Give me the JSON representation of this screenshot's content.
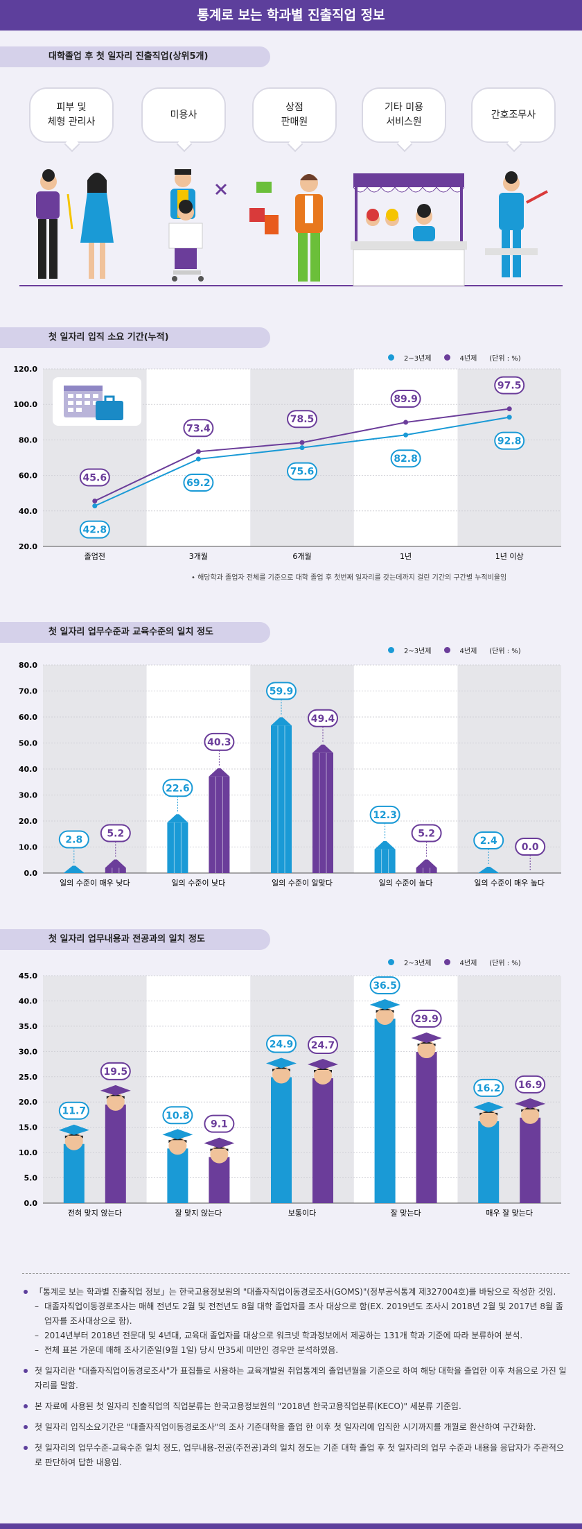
{
  "header": {
    "title": "통계로 보는 학과별 진출직업 정보"
  },
  "section1": {
    "label": "대학졸업 후 첫 일자리 진출직업(상위5개)",
    "jobs": [
      "피부 및\n체형 관리사",
      "미용사",
      "상점\n판매원",
      "기타 미용\n서비스원",
      "간호조무사"
    ]
  },
  "colors": {
    "series_a": "#1a9ad6",
    "series_b": "#6b3d9a",
    "title": "#5d3f9c"
  },
  "legend": {
    "a": "2~3년제",
    "b": "4년제",
    "unit": "(단위 : %)"
  },
  "section2": {
    "label": "첫 일자리 입직 소요 기간(누적)",
    "note": "• 해당학과 졸업자 전체를 기준으로 대학 졸업 후 첫번째 일자리를 갖는데까지 걸린 기간의 구간별 누적비율임",
    "icon": "calendar-briefcase-icon"
  },
  "section3": {
    "label": "첫 일자리 업무수준과 교육수준의 일치 정도"
  },
  "section4": {
    "label": "첫 일자리 업무내용과 전공과의 일치 정도"
  },
  "chart_data": [
    {
      "type": "line",
      "title": "첫 일자리 입직 소요 기간(누적)",
      "categories": [
        "졸업전",
        "3개월",
        "6개월",
        "1년",
        "1년 이상"
      ],
      "series": [
        {
          "name": "2~3년제",
          "values": [
            42.8,
            69.2,
            75.6,
            82.8,
            92.8
          ]
        },
        {
          "name": "4년제",
          "values": [
            45.6,
            73.4,
            78.5,
            89.9,
            97.5
          ]
        }
      ],
      "ylim": [
        20,
        120
      ],
      "yticks": [
        "20.0",
        "40.0",
        "60.0",
        "80.0",
        "100.0",
        "120.0"
      ],
      "unit": "(단위 : %)"
    },
    {
      "type": "bar",
      "title": "첫 일자리 업무수준과 교육수준의 일치 정도",
      "categories": [
        "일의 수준이 매우 낮다",
        "일의 수준이 낮다",
        "일의 수준이 알맞다",
        "일의 수준이 높다",
        "일의 수준이 매우 높다"
      ],
      "series": [
        {
          "name": "2~3년제",
          "values": [
            2.8,
            22.6,
            59.9,
            12.3,
            2.4
          ]
        },
        {
          "name": "4년제",
          "values": [
            5.2,
            40.3,
            49.4,
            5.2,
            0.0
          ]
        }
      ],
      "ylim": [
        0,
        80
      ],
      "yticks": [
        "0.0",
        "10.0",
        "20.0",
        "30.0",
        "40.0",
        "50.0",
        "60.0",
        "70.0",
        "80.0"
      ],
      "unit": "(단위 : %)"
    },
    {
      "type": "bar",
      "title": "첫 일자리 업무내용과 전공과의 일치 정도",
      "categories": [
        "전혀 맞지 않는다",
        "잘 맞지 않는다",
        "보통이다",
        "잘 맞는다",
        "매우 잘 맞는다"
      ],
      "series": [
        {
          "name": "2~3년제",
          "values": [
            11.7,
            10.8,
            24.9,
            36.5,
            16.2
          ]
        },
        {
          "name": "4년제",
          "values": [
            19.5,
            9.1,
            24.7,
            29.9,
            16.9
          ]
        }
      ],
      "ylim": [
        0,
        45
      ],
      "yticks": [
        "0.0",
        "5.0",
        "10.0",
        "15.0",
        "20.0",
        "25.0",
        "30.0",
        "35.0",
        "40.0",
        "45.0"
      ],
      "unit": "(단위 : %)"
    }
  ],
  "notes": [
    "「통계로 보는 학과별 진출직업 정보」는 한국고용정보원의 \"대졸자직업이동경로조사(GOMS)\"(정부공식통계 제327004호)를 바탕으로 작성한 것임.",
    "대졸자직업이동경로조사는 매해 전년도 2월 및 전전년도 8월 대학 졸업자를 조사 대상으로 함(EX. 2019년도 조사시 2018년 2월 및 2017년 8월 졸업자를 조사대상으로 함).",
    "2014년부터 2018년 전문대 및 4년대, 교육대 졸업자를 대상으로 워크넷 학과정보에서 제공하는 131개 학과 기준에 따라 분류하여 분석.",
    "전체 표본 가운데 매해 조사기준일(9월 1일) 당시 만35세 미만인 경우만 분석하였음.",
    "첫 일자리란 \"대졸자직업이동경로조사\"가 표집틀로 사용하는 교육개발원 취업통계의 졸업년월을 기준으로 하여 해당 대학을 졸업한 이후 처음으로 가진 일자리를 말함.",
    "본 자료에 사용된 첫 일자리 진출직업의 직업분류는 한국고용정보원의 \"2018년 한국고용직업분류(KECO)\" 세분류 기준임.",
    "첫 일자리 입직소요기간은 \"대졸자직업이동경로조사\"의 조사 기준대학을 졸업 한 이후 첫 일자리에 입직한 시기까지를 개월로 환산하여 구간화함.",
    "첫 일자리의 업무수준-교육수준 일치 정도, 업무내용-전공(주전공)과의 일치 정도는 기준 대학 졸업 후 첫 일자리의 업무 수준과 내용을 응답자가 주관적으로 판단하여 답한 내용임."
  ]
}
